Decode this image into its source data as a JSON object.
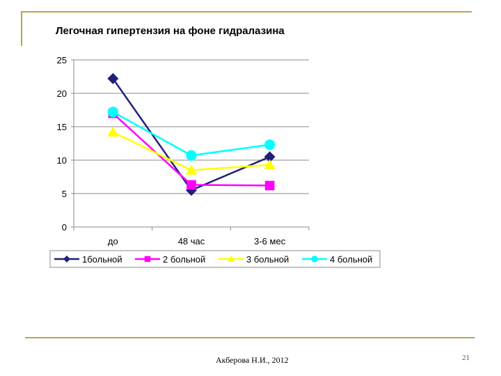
{
  "slide": {
    "author": "Акберова Н.И., 2012",
    "page_number": "21"
  },
  "chart_data": {
    "type": "line",
    "title": "Легочная гипертензия на фоне гидралазина",
    "categories": [
      "до",
      "48 час",
      "3-6 мес"
    ],
    "ylim": [
      0,
      25
    ],
    "yticks": [
      0,
      5,
      10,
      15,
      20,
      25
    ],
    "grid": true,
    "legend_position": "bottom",
    "series": [
      {
        "name": "1больной",
        "values": [
          22.2,
          5.5,
          10.5
        ],
        "color": "#1f1f7a",
        "marker": "diamond"
      },
      {
        "name": "2 больной",
        "values": [
          17.0,
          6.3,
          6.2
        ],
        "color": "#ff00ff",
        "marker": "square"
      },
      {
        "name": "3 больной",
        "values": [
          14.2,
          8.5,
          9.3
        ],
        "color": "#ffff00",
        "marker": "triangle"
      },
      {
        "name": "4 больной",
        "values": [
          17.2,
          10.7,
          12.3
        ],
        "color": "#00ffff",
        "marker": "circle"
      }
    ]
  }
}
